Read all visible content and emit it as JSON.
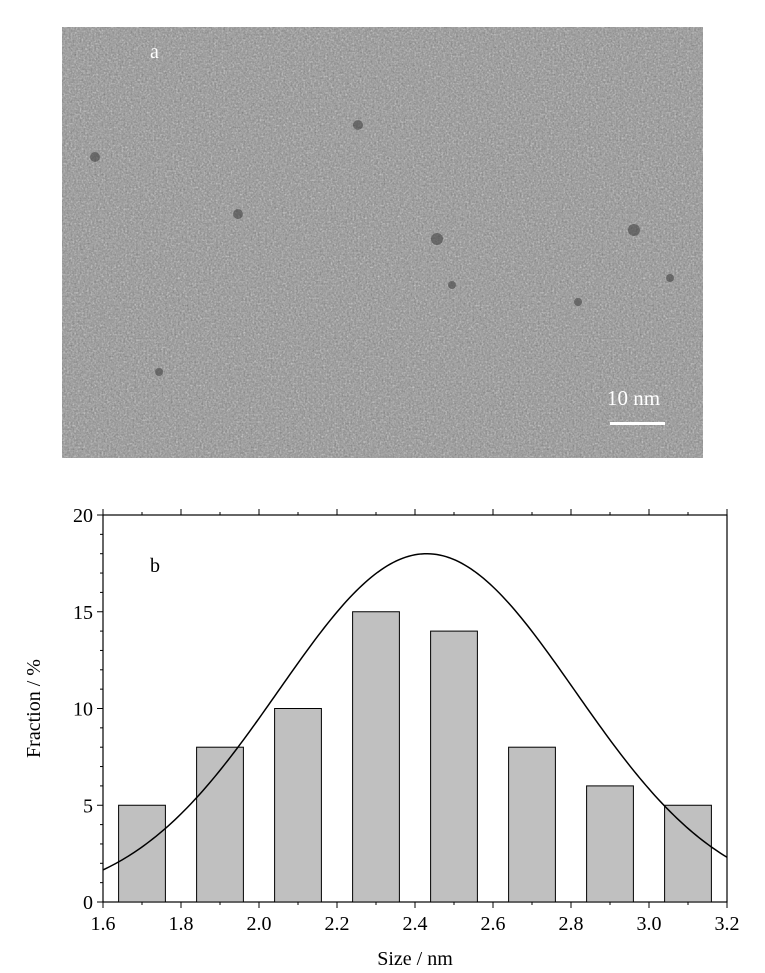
{
  "tem_image": {
    "panel_label": "a",
    "scale_bar_label": "10 nm"
  },
  "chart_data": {
    "type": "bar",
    "panel_label": "b",
    "xlabel": "Size / nm",
    "ylabel": "Fraction / %",
    "xlim": [
      1.6,
      3.2
    ],
    "ylim": [
      0,
      20
    ],
    "xticks": [
      "1.6",
      "1.8",
      "2.0",
      "2.2",
      "2.4",
      "2.6",
      "2.8",
      "3.0",
      "3.2"
    ],
    "yticks": [
      "0",
      "5",
      "10",
      "15",
      "20"
    ],
    "bars": [
      {
        "x": 1.7,
        "value": 5
      },
      {
        "x": 1.9,
        "value": 8
      },
      {
        "x": 2.1,
        "value": 10
      },
      {
        "x": 2.3,
        "value": 15
      },
      {
        "x": 2.5,
        "value": 14
      },
      {
        "x": 2.7,
        "value": 8
      },
      {
        "x": 2.9,
        "value": 6
      },
      {
        "x": 3.1,
        "value": 5
      }
    ],
    "bar_width": 0.12,
    "bar_color": "#c0c0c0",
    "fit_curve": {
      "type": "gaussian",
      "center": 2.43,
      "peak": 18.0,
      "sigma": 0.38
    },
    "grid": false,
    "legend": "none"
  }
}
